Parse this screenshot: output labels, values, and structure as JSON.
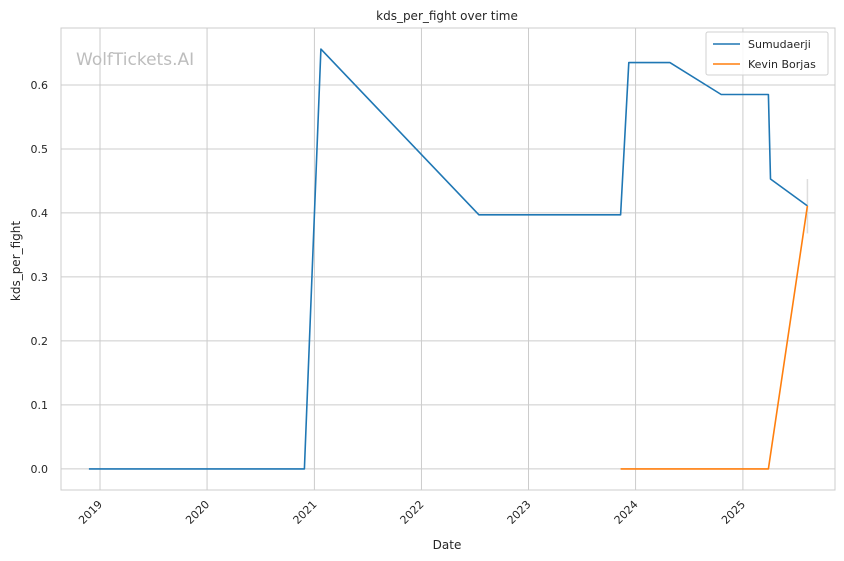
{
  "chart_data": {
    "type": "line",
    "title": "kds_per_fight over time",
    "xlabel": "Date",
    "ylabel": "kds_per_fight",
    "watermark": "WolfTickets.AI",
    "x_axis": "date",
    "xlim": [
      "2018-08-21",
      "2025-11-11"
    ],
    "xticks": [
      "2019",
      "2020",
      "2021",
      "2022",
      "2023",
      "2024",
      "2025"
    ],
    "ylim": [
      -0.033,
      0.689
    ],
    "yticks": [
      "0.0",
      "0.1",
      "0.2",
      "0.3",
      "0.4",
      "0.5",
      "0.6"
    ],
    "grid": true,
    "legend_position": "top-right",
    "series": [
      {
        "name": "Sumudaerji",
        "color": "#1f77b4",
        "points": [
          {
            "x": "2018-11-24",
            "y": 0.0
          },
          {
            "x": "2020-11-28",
            "y": 0.0
          },
          {
            "x": "2021-01-23",
            "y": 0.656
          },
          {
            "x": "2022-07-16",
            "y": 0.397
          },
          {
            "x": "2023-11-11",
            "y": 0.397
          },
          {
            "x": "2023-12-09",
            "y": 0.635
          },
          {
            "x": "2024-04-27",
            "y": 0.635
          },
          {
            "x": "2024-10-19",
            "y": 0.585
          },
          {
            "x": "2025-03-29",
            "y": 0.585
          },
          {
            "x": "2025-04-05",
            "y": 0.453
          },
          {
            "x": "2025-08-09",
            "y": 0.411
          }
        ]
      },
      {
        "name": "Kevin Borjas",
        "color": "#ff7f0e",
        "points": [
          {
            "x": "2023-11-11",
            "y": 0.0
          },
          {
            "x": "2025-03-29",
            "y": 0.0
          },
          {
            "x": "2025-08-09",
            "y": 0.411
          }
        ]
      }
    ],
    "error_bar": {
      "x": "2025-08-09",
      "low": 0.368,
      "high": 0.453,
      "color": "#dddddd"
    }
  }
}
